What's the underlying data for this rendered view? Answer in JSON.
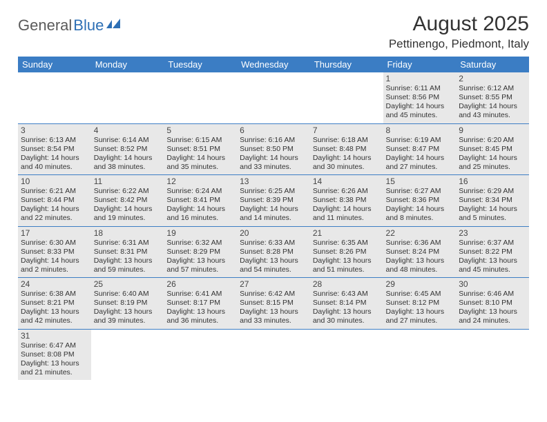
{
  "logo": {
    "text1": "General",
    "text2": "Blue"
  },
  "title": "August 2025",
  "location": "Pettinengo, Piedmont, Italy",
  "colors": {
    "header_bg": "#3b7dc4",
    "header_text": "#ffffff",
    "cell_bg": "#e8e8e8",
    "border": "#3b7dc4",
    "logo_gray": "#5a5a5a",
    "logo_blue": "#2d6fb5"
  },
  "day_headers": [
    "Sunday",
    "Monday",
    "Tuesday",
    "Wednesday",
    "Thursday",
    "Friday",
    "Saturday"
  ],
  "weeks": [
    [
      null,
      null,
      null,
      null,
      null,
      {
        "n": "1",
        "sr": "6:11 AM",
        "ss": "8:56 PM",
        "dl": "14 hours and 45 minutes."
      },
      {
        "n": "2",
        "sr": "6:12 AM",
        "ss": "8:55 PM",
        "dl": "14 hours and 43 minutes."
      }
    ],
    [
      {
        "n": "3",
        "sr": "6:13 AM",
        "ss": "8:54 PM",
        "dl": "14 hours and 40 minutes."
      },
      {
        "n": "4",
        "sr": "6:14 AM",
        "ss": "8:52 PM",
        "dl": "14 hours and 38 minutes."
      },
      {
        "n": "5",
        "sr": "6:15 AM",
        "ss": "8:51 PM",
        "dl": "14 hours and 35 minutes."
      },
      {
        "n": "6",
        "sr": "6:16 AM",
        "ss": "8:50 PM",
        "dl": "14 hours and 33 minutes."
      },
      {
        "n": "7",
        "sr": "6:18 AM",
        "ss": "8:48 PM",
        "dl": "14 hours and 30 minutes."
      },
      {
        "n": "8",
        "sr": "6:19 AM",
        "ss": "8:47 PM",
        "dl": "14 hours and 27 minutes."
      },
      {
        "n": "9",
        "sr": "6:20 AM",
        "ss": "8:45 PM",
        "dl": "14 hours and 25 minutes."
      }
    ],
    [
      {
        "n": "10",
        "sr": "6:21 AM",
        "ss": "8:44 PM",
        "dl": "14 hours and 22 minutes."
      },
      {
        "n": "11",
        "sr": "6:22 AM",
        "ss": "8:42 PM",
        "dl": "14 hours and 19 minutes."
      },
      {
        "n": "12",
        "sr": "6:24 AM",
        "ss": "8:41 PM",
        "dl": "14 hours and 16 minutes."
      },
      {
        "n": "13",
        "sr": "6:25 AM",
        "ss": "8:39 PM",
        "dl": "14 hours and 14 minutes."
      },
      {
        "n": "14",
        "sr": "6:26 AM",
        "ss": "8:38 PM",
        "dl": "14 hours and 11 minutes."
      },
      {
        "n": "15",
        "sr": "6:27 AM",
        "ss": "8:36 PM",
        "dl": "14 hours and 8 minutes."
      },
      {
        "n": "16",
        "sr": "6:29 AM",
        "ss": "8:34 PM",
        "dl": "14 hours and 5 minutes."
      }
    ],
    [
      {
        "n": "17",
        "sr": "6:30 AM",
        "ss": "8:33 PM",
        "dl": "14 hours and 2 minutes."
      },
      {
        "n": "18",
        "sr": "6:31 AM",
        "ss": "8:31 PM",
        "dl": "13 hours and 59 minutes."
      },
      {
        "n": "19",
        "sr": "6:32 AM",
        "ss": "8:29 PM",
        "dl": "13 hours and 57 minutes."
      },
      {
        "n": "20",
        "sr": "6:33 AM",
        "ss": "8:28 PM",
        "dl": "13 hours and 54 minutes."
      },
      {
        "n": "21",
        "sr": "6:35 AM",
        "ss": "8:26 PM",
        "dl": "13 hours and 51 minutes."
      },
      {
        "n": "22",
        "sr": "6:36 AM",
        "ss": "8:24 PM",
        "dl": "13 hours and 48 minutes."
      },
      {
        "n": "23",
        "sr": "6:37 AM",
        "ss": "8:22 PM",
        "dl": "13 hours and 45 minutes."
      }
    ],
    [
      {
        "n": "24",
        "sr": "6:38 AM",
        "ss": "8:21 PM",
        "dl": "13 hours and 42 minutes."
      },
      {
        "n": "25",
        "sr": "6:40 AM",
        "ss": "8:19 PM",
        "dl": "13 hours and 39 minutes."
      },
      {
        "n": "26",
        "sr": "6:41 AM",
        "ss": "8:17 PM",
        "dl": "13 hours and 36 minutes."
      },
      {
        "n": "27",
        "sr": "6:42 AM",
        "ss": "8:15 PM",
        "dl": "13 hours and 33 minutes."
      },
      {
        "n": "28",
        "sr": "6:43 AM",
        "ss": "8:14 PM",
        "dl": "13 hours and 30 minutes."
      },
      {
        "n": "29",
        "sr": "6:45 AM",
        "ss": "8:12 PM",
        "dl": "13 hours and 27 minutes."
      },
      {
        "n": "30",
        "sr": "6:46 AM",
        "ss": "8:10 PM",
        "dl": "13 hours and 24 minutes."
      }
    ],
    [
      {
        "n": "31",
        "sr": "6:47 AM",
        "ss": "8:08 PM",
        "dl": "13 hours and 21 minutes."
      },
      null,
      null,
      null,
      null,
      null,
      null
    ]
  ],
  "labels": {
    "sunrise": "Sunrise:",
    "sunset": "Sunset:",
    "daylight": "Daylight:"
  }
}
